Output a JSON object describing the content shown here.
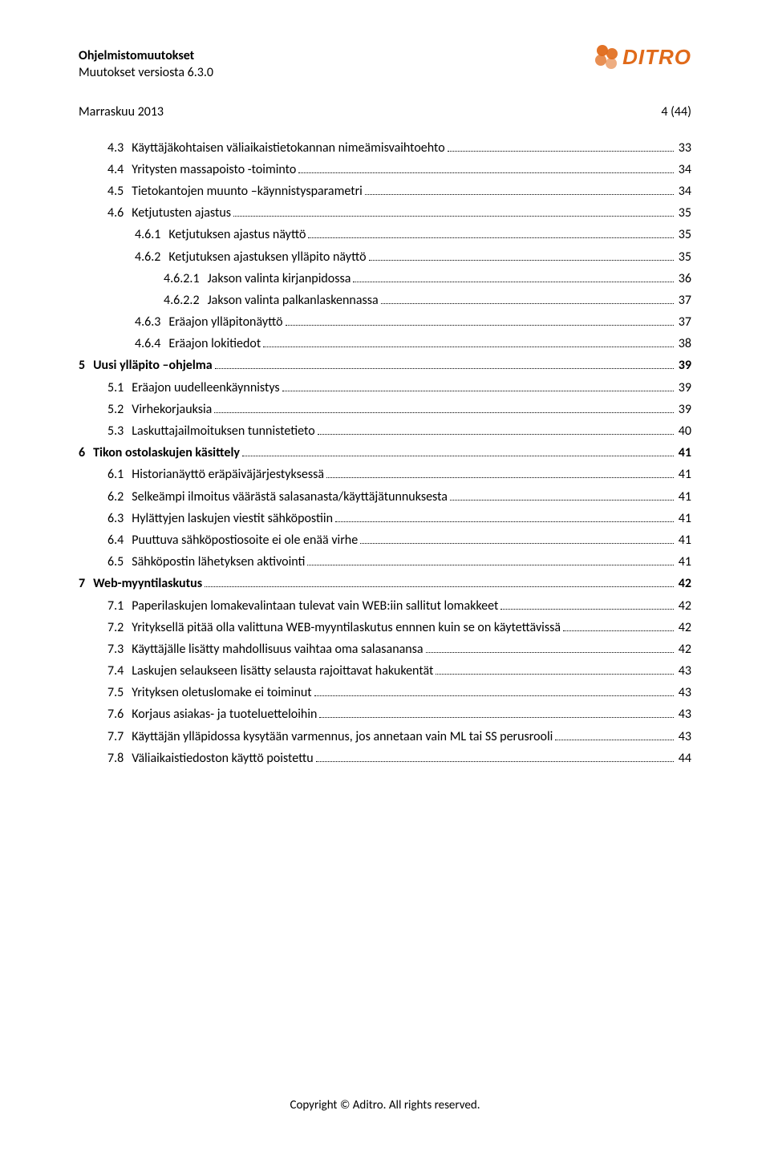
{
  "header": {
    "title": "Ohjelmistomuutokset",
    "subtitle": "Muutokset versiosta 6.3.0",
    "logo_text": "DITRO",
    "logo_color": "#e06a1a"
  },
  "meta": {
    "date": "Marraskuu 2013",
    "page": "4 (44)"
  },
  "toc": [
    {
      "ind": 1,
      "bold": false,
      "num": "4.3",
      "title": "Käyttäjäkohtaisen väliaikaistietokannan nimeämisvaihtoehto",
      "page": "33"
    },
    {
      "ind": 1,
      "bold": false,
      "num": "4.4",
      "title": "Yritysten massapoisto -toiminto",
      "page": "34"
    },
    {
      "ind": 1,
      "bold": false,
      "num": "4.5",
      "title": "Tietokantojen muunto –käynnistysparametri",
      "page": "34"
    },
    {
      "ind": 1,
      "bold": false,
      "num": "4.6",
      "title": "Ketjutusten ajastus",
      "page": "35"
    },
    {
      "ind": 2,
      "bold": false,
      "num": "4.6.1",
      "title": "Ketjutuksen ajastus näyttö",
      "page": "35"
    },
    {
      "ind": 2,
      "bold": false,
      "num": "4.6.2",
      "title": "Ketjutuksen ajastuksen ylläpito näyttö",
      "page": "35"
    },
    {
      "ind": 3,
      "bold": false,
      "num": "4.6.2.1",
      "title": "Jakson valinta kirjanpidossa",
      "page": "36"
    },
    {
      "ind": 3,
      "bold": false,
      "num": "4.6.2.2",
      "title": "Jakson valinta palkanlaskennassa",
      "page": "37"
    },
    {
      "ind": 2,
      "bold": false,
      "num": "4.6.3",
      "title": "Eräajon ylläpitonäyttö",
      "page": "37"
    },
    {
      "ind": 2,
      "bold": false,
      "num": "4.6.4",
      "title": "Eräajon lokitiedot",
      "page": "38"
    },
    {
      "ind": 0,
      "bold": true,
      "num": "5",
      "title": "Uusi ylläpito –ohjelma",
      "page": "39"
    },
    {
      "ind": 1,
      "bold": false,
      "num": "5.1",
      "title": "Eräajon uudelleenkäynnistys",
      "page": "39"
    },
    {
      "ind": 1,
      "bold": false,
      "num": "5.2",
      "title": "Virhekorjauksia",
      "page": "39"
    },
    {
      "ind": 1,
      "bold": false,
      "num": "5.3",
      "title": "Laskuttajailmoituksen tunnistetieto",
      "page": "40"
    },
    {
      "ind": 0,
      "bold": true,
      "num": "6",
      "title": "Tikon ostolaskujen käsittely",
      "page": "41"
    },
    {
      "ind": 1,
      "bold": false,
      "num": "6.1",
      "title": "Historianäyttö eräpäiväjärjestyksessä",
      "page": "41"
    },
    {
      "ind": 1,
      "bold": false,
      "num": "6.2",
      "title": "Selkeämpi ilmoitus väärästä salasanasta/käyttäjätunnuksesta",
      "page": "41"
    },
    {
      "ind": 1,
      "bold": false,
      "num": "6.3",
      "title": "Hylättyjen laskujen viestit sähköpostiin",
      "page": "41"
    },
    {
      "ind": 1,
      "bold": false,
      "num": "6.4",
      "title": "Puuttuva sähköpostiosoite ei ole enää virhe",
      "page": "41"
    },
    {
      "ind": 1,
      "bold": false,
      "num": "6.5",
      "title": "Sähköpostin lähetyksen aktivointi",
      "page": "41"
    },
    {
      "ind": 0,
      "bold": true,
      "num": "7",
      "title": "Web-myyntilaskutus",
      "page": "42"
    },
    {
      "ind": 1,
      "bold": false,
      "num": "7.1",
      "title": "Paperilaskujen lomakevalintaan tulevat vain WEB:iin sallitut lomakkeet",
      "page": "42"
    },
    {
      "ind": 1,
      "bold": false,
      "num": "7.2",
      "title": "Yrityksellä pitää olla valittuna WEB-myyntilaskutus ennnen kuin se on käytettävissä",
      "page": "42"
    },
    {
      "ind": 1,
      "bold": false,
      "num": "7.3",
      "title": "Käyttäjälle lisätty mahdollisuus vaihtaa oma salasanansa",
      "page": "42"
    },
    {
      "ind": 1,
      "bold": false,
      "num": "7.4",
      "title": "Laskujen selaukseen lisätty selausta rajoittavat hakukentät",
      "page": "43"
    },
    {
      "ind": 1,
      "bold": false,
      "num": "7.5",
      "title": "Yrityksen oletuslomake ei toiminut",
      "page": "43"
    },
    {
      "ind": 1,
      "bold": false,
      "num": "7.6",
      "title": "Korjaus asiakas- ja tuoteluetteloihin",
      "page": "43"
    },
    {
      "ind": 1,
      "bold": false,
      "num": "7.7",
      "title": "Käyttäjän ylläpidossa kysytään varmennus, jos annetaan vain ML tai SS perusrooli",
      "page": "43"
    },
    {
      "ind": 1,
      "bold": false,
      "num": "7.8",
      "title": "Väliaikaistiedoston käyttö poistettu",
      "page": "44"
    }
  ],
  "footer": "Copyright © Aditro. All rights reserved."
}
